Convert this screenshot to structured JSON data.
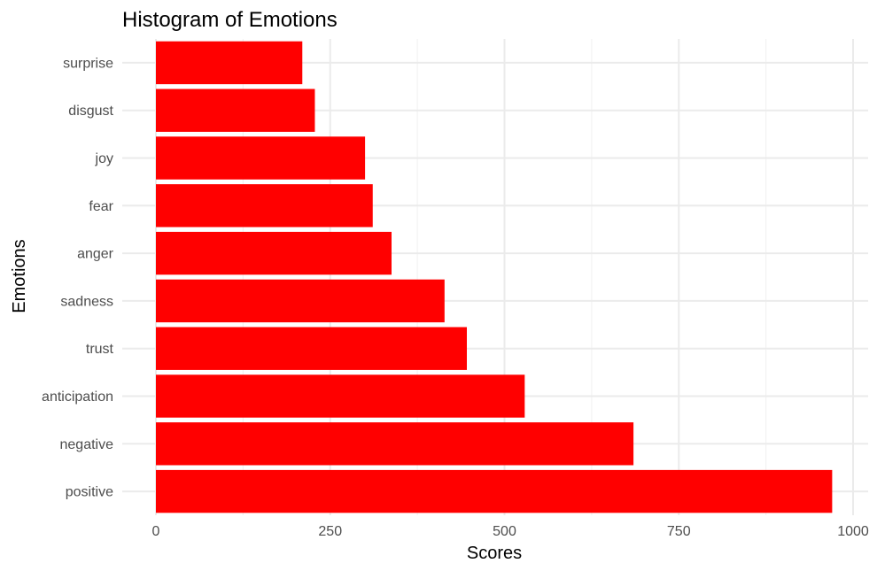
{
  "chart_data": {
    "type": "bar",
    "orientation": "horizontal",
    "title": "Histogram of Emotions",
    "xlabel": "Scores",
    "ylabel": "Emotions",
    "categories": [
      "positive",
      "negative",
      "anticipation",
      "trust",
      "sadness",
      "anger",
      "fear",
      "joy",
      "disgust",
      "surprise"
    ],
    "values": [
      970,
      685,
      529,
      446,
      414,
      338,
      311,
      300,
      228,
      210
    ],
    "xlim": [
      0,
      1000
    ],
    "x_ticks": [
      0,
      250,
      500,
      750,
      1000
    ],
    "x_tick_labels": [
      "0",
      "250",
      "500",
      "750",
      "1000"
    ],
    "bar_color": "#ff0000",
    "grid": true,
    "legend": "none"
  }
}
